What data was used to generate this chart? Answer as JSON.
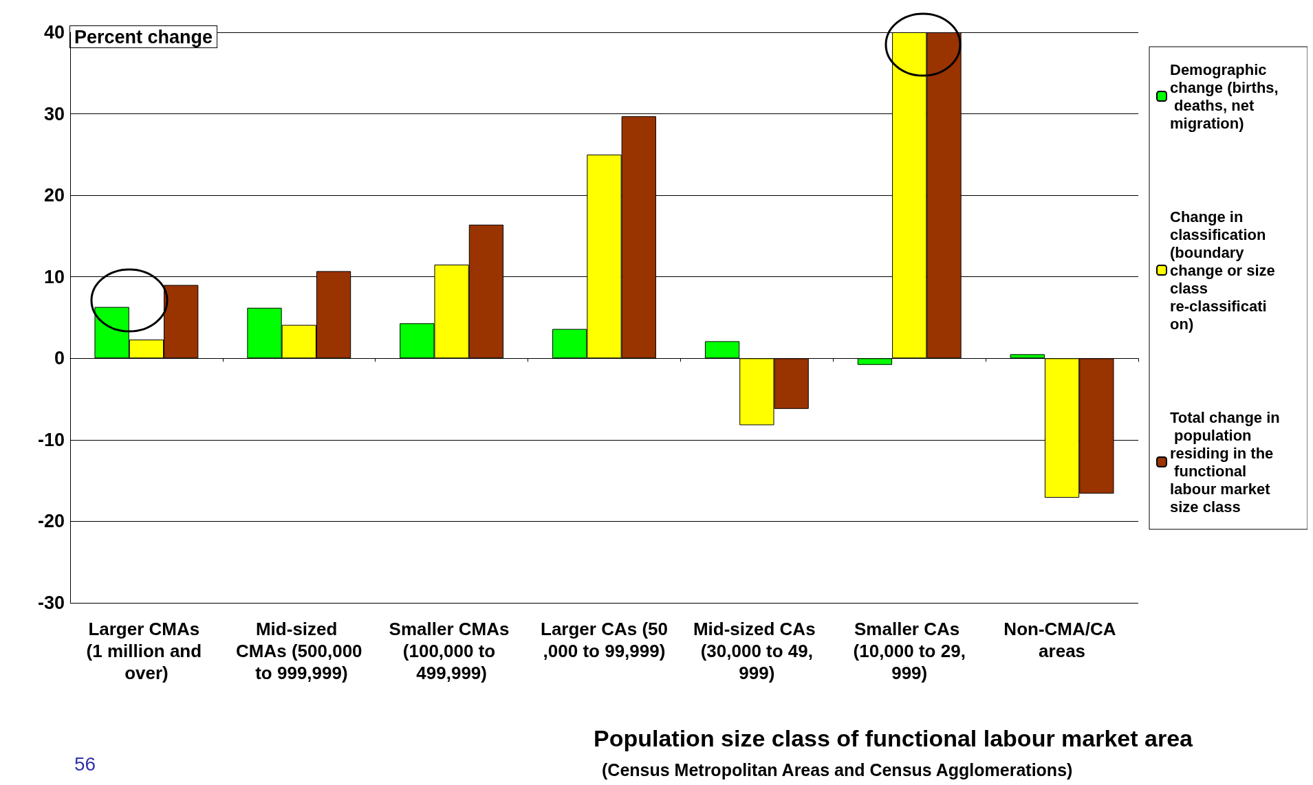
{
  "chart_data": {
    "type": "bar",
    "ylabel": "Percent change",
    "xlabel": "Population size class of functional labour market area",
    "annotations": [
      "(Census Metropolitan Areas and Census Agglomerations)",
      "56"
    ],
    "categories": [
      "Larger CMAs (1 million and over)",
      "Mid-sized CMAs (500,000 to 999,999)",
      "Smaller CMAs (100,000 to 499,999)",
      "Larger CAs (50,000 to 99,999)",
      "Mid-sized CAs (30,000 to 49,999)",
      "Smaller CAs (10,000 to 29,999)",
      "Non-CMA/CA areas"
    ],
    "series": [
      {
        "name": "Demographic change (births, deaths, net migration)",
        "color": "#00ff00",
        "values": [
          6.3,
          6.2,
          4.3,
          3.6,
          2.1,
          -0.8,
          0.5
        ]
      },
      {
        "name": "Change in classification (boundary change or size class re-classification)",
        "color": "#ffff00",
        "values": [
          2.3,
          4.1,
          11.5,
          25.0,
          -8.2,
          40,
          -17.1
        ]
      },
      {
        "name": "Total change in population residing in the functional labour market size class",
        "color": "#993300",
        "values": [
          9.0,
          10.7,
          16.4,
          29.7,
          -6.2,
          40,
          -16.6
        ]
      }
    ],
    "ylim": [
      -30,
      40
    ],
    "yticks": [
      -30,
      -20,
      -10,
      0,
      10,
      20,
      30,
      40
    ],
    "grid": "y",
    "legend": "right"
  }
}
